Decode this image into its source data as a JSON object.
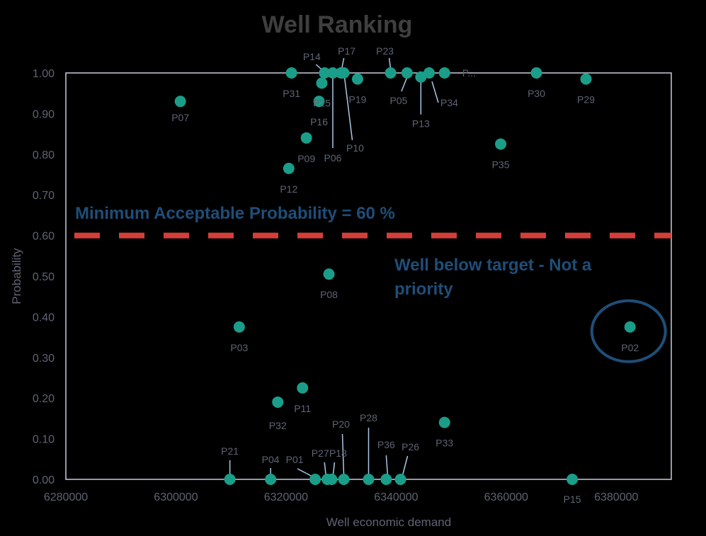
{
  "chart_data": {
    "type": "scatter",
    "title": "Well Ranking",
    "xlabel": "Well economic demand",
    "ylabel": "Probability",
    "xlim": [
      6280000,
      6390000
    ],
    "ylim": [
      0,
      1
    ],
    "x_ticks": [
      "6280000",
      "6300000",
      "6320000",
      "6340000",
      "6360000",
      "6380000"
    ],
    "y_ticks": [
      "0.00",
      "0.10",
      "0.20",
      "0.30",
      "0.40",
      "0.50",
      "0.60",
      "0.70",
      "0.80",
      "0.90",
      "1.00"
    ],
    "grid": false,
    "threshold": {
      "value": 0.6,
      "label": "Minimum Acceptable Probability = 60 %",
      "color": "#d43f3a"
    },
    "annotation": {
      "line1": "Well below target - Not a",
      "line2": "priority",
      "target_point": "P02"
    },
    "colors": {
      "marker": "#1a9e8a",
      "annotation_text": "#1f4e79",
      "axis_text": "#5f6473",
      "title": "#3f3f3f",
      "background": "#000000",
      "plot_border": "#c9ccdf"
    },
    "points": [
      {
        "name": "P07",
        "x": 6300800,
        "y": 0.93
      },
      {
        "name": "P31",
        "x": 6321000,
        "y": 1.0
      },
      {
        "name": "P14",
        "x": 6327000,
        "y": 1.0
      },
      {
        "name": "P17",
        "x": 6330000,
        "y": 1.0
      },
      {
        "name": "P06",
        "x": 6328500,
        "y": 1.0
      },
      {
        "name": "P10",
        "x": 6330500,
        "y": 1.0
      },
      {
        "name": "P25",
        "x": 6326500,
        "y": 0.975
      },
      {
        "name": "P16",
        "x": 6326000,
        "y": 0.93
      },
      {
        "name": "P19",
        "x": 6333000,
        "y": 0.985
      },
      {
        "name": "P23",
        "x": 6339000,
        "y": 1.0
      },
      {
        "name": "P05",
        "x": 6342000,
        "y": 1.0
      },
      {
        "name": "P13",
        "x": 6344500,
        "y": 0.99
      },
      {
        "name": "P34",
        "x": 6346000,
        "y": 1.0
      },
      {
        "name": "P...",
        "x": 6348800,
        "y": 1.0
      },
      {
        "name": "P30",
        "x": 6365500,
        "y": 1.0
      },
      {
        "name": "P29",
        "x": 6374500,
        "y": 0.985
      },
      {
        "name": "P09",
        "x": 6323700,
        "y": 0.84
      },
      {
        "name": "P12",
        "x": 6320500,
        "y": 0.765
      },
      {
        "name": "P35",
        "x": 6359000,
        "y": 0.825
      },
      {
        "name": "P08",
        "x": 6327800,
        "y": 0.505
      },
      {
        "name": "P03",
        "x": 6311500,
        "y": 0.375
      },
      {
        "name": "P02",
        "x": 6382500,
        "y": 0.375
      },
      {
        "name": "P11",
        "x": 6323000,
        "y": 0.225
      },
      {
        "name": "P32",
        "x": 6318500,
        "y": 0.19
      },
      {
        "name": "P33",
        "x": 6348800,
        "y": 0.14
      },
      {
        "name": "P21",
        "x": 6309800,
        "y": 0.0
      },
      {
        "name": "P04",
        "x": 6317200,
        "y": 0.0
      },
      {
        "name": "P01",
        "x": 6325300,
        "y": 0.0
      },
      {
        "name": "P27",
        "x": 6327500,
        "y": 0.0
      },
      {
        "name": "P18",
        "x": 6328300,
        "y": 0.0
      },
      {
        "name": "P20",
        "x": 6330500,
        "y": 0.0
      },
      {
        "name": "P28",
        "x": 6335000,
        "y": 0.0
      },
      {
        "name": "P36",
        "x": 6338200,
        "y": 0.0
      },
      {
        "name": "P26",
        "x": 6340800,
        "y": 0.0
      },
      {
        "name": "P15",
        "x": 6372000,
        "y": 0.0
      }
    ]
  }
}
